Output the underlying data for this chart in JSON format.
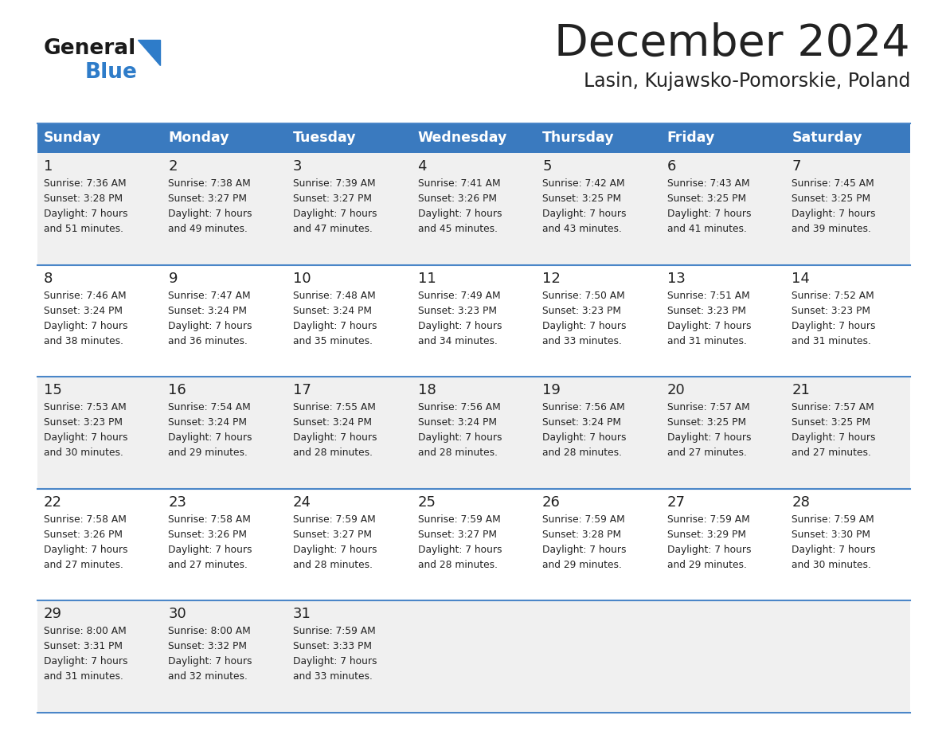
{
  "title": "December 2024",
  "subtitle": "Lasin, Kujawsko-Pomorskie, Poland",
  "header_color": "#3a7abf",
  "header_text_color": "#ffffff",
  "days_of_week": [
    "Sunday",
    "Monday",
    "Tuesday",
    "Wednesday",
    "Thursday",
    "Friday",
    "Saturday"
  ],
  "weeks": [
    [
      {
        "day": 1,
        "sunrise": "7:36 AM",
        "sunset": "3:28 PM",
        "daylight": "7 hours and 51 minutes."
      },
      {
        "day": 2,
        "sunrise": "7:38 AM",
        "sunset": "3:27 PM",
        "daylight": "7 hours and 49 minutes."
      },
      {
        "day": 3,
        "sunrise": "7:39 AM",
        "sunset": "3:27 PM",
        "daylight": "7 hours and 47 minutes."
      },
      {
        "day": 4,
        "sunrise": "7:41 AM",
        "sunset": "3:26 PM",
        "daylight": "7 hours and 45 minutes."
      },
      {
        "day": 5,
        "sunrise": "7:42 AM",
        "sunset": "3:25 PM",
        "daylight": "7 hours and 43 minutes."
      },
      {
        "day": 6,
        "sunrise": "7:43 AM",
        "sunset": "3:25 PM",
        "daylight": "7 hours and 41 minutes."
      },
      {
        "day": 7,
        "sunrise": "7:45 AM",
        "sunset": "3:25 PM",
        "daylight": "7 hours and 39 minutes."
      }
    ],
    [
      {
        "day": 8,
        "sunrise": "7:46 AM",
        "sunset": "3:24 PM",
        "daylight": "7 hours and 38 minutes."
      },
      {
        "day": 9,
        "sunrise": "7:47 AM",
        "sunset": "3:24 PM",
        "daylight": "7 hours and 36 minutes."
      },
      {
        "day": 10,
        "sunrise": "7:48 AM",
        "sunset": "3:24 PM",
        "daylight": "7 hours and 35 minutes."
      },
      {
        "day": 11,
        "sunrise": "7:49 AM",
        "sunset": "3:23 PM",
        "daylight": "7 hours and 34 minutes."
      },
      {
        "day": 12,
        "sunrise": "7:50 AM",
        "sunset": "3:23 PM",
        "daylight": "7 hours and 33 minutes."
      },
      {
        "day": 13,
        "sunrise": "7:51 AM",
        "sunset": "3:23 PM",
        "daylight": "7 hours and 31 minutes."
      },
      {
        "day": 14,
        "sunrise": "7:52 AM",
        "sunset": "3:23 PM",
        "daylight": "7 hours and 31 minutes."
      }
    ],
    [
      {
        "day": 15,
        "sunrise": "7:53 AM",
        "sunset": "3:23 PM",
        "daylight": "7 hours and 30 minutes."
      },
      {
        "day": 16,
        "sunrise": "7:54 AM",
        "sunset": "3:24 PM",
        "daylight": "7 hours and 29 minutes."
      },
      {
        "day": 17,
        "sunrise": "7:55 AM",
        "sunset": "3:24 PM",
        "daylight": "7 hours and 28 minutes."
      },
      {
        "day": 18,
        "sunrise": "7:56 AM",
        "sunset": "3:24 PM",
        "daylight": "7 hours and 28 minutes."
      },
      {
        "day": 19,
        "sunrise": "7:56 AM",
        "sunset": "3:24 PM",
        "daylight": "7 hours and 28 minutes."
      },
      {
        "day": 20,
        "sunrise": "7:57 AM",
        "sunset": "3:25 PM",
        "daylight": "7 hours and 27 minutes."
      },
      {
        "day": 21,
        "sunrise": "7:57 AM",
        "sunset": "3:25 PM",
        "daylight": "7 hours and 27 minutes."
      }
    ],
    [
      {
        "day": 22,
        "sunrise": "7:58 AM",
        "sunset": "3:26 PM",
        "daylight": "7 hours and 27 minutes."
      },
      {
        "day": 23,
        "sunrise": "7:58 AM",
        "sunset": "3:26 PM",
        "daylight": "7 hours and 27 minutes."
      },
      {
        "day": 24,
        "sunrise": "7:59 AM",
        "sunset": "3:27 PM",
        "daylight": "7 hours and 28 minutes."
      },
      {
        "day": 25,
        "sunrise": "7:59 AM",
        "sunset": "3:27 PM",
        "daylight": "7 hours and 28 minutes."
      },
      {
        "day": 26,
        "sunrise": "7:59 AM",
        "sunset": "3:28 PM",
        "daylight": "7 hours and 29 minutes."
      },
      {
        "day": 27,
        "sunrise": "7:59 AM",
        "sunset": "3:29 PM",
        "daylight": "7 hours and 29 minutes."
      },
      {
        "day": 28,
        "sunrise": "7:59 AM",
        "sunset": "3:30 PM",
        "daylight": "7 hours and 30 minutes."
      }
    ],
    [
      {
        "day": 29,
        "sunrise": "8:00 AM",
        "sunset": "3:31 PM",
        "daylight": "7 hours and 31 minutes."
      },
      {
        "day": 30,
        "sunrise": "8:00 AM",
        "sunset": "3:32 PM",
        "daylight": "7 hours and 32 minutes."
      },
      {
        "day": 31,
        "sunrise": "7:59 AM",
        "sunset": "3:33 PM",
        "daylight": "7 hours and 33 minutes."
      },
      null,
      null,
      null,
      null
    ]
  ],
  "bg_color": "#ffffff",
  "cell_bg_even": "#f0f0f0",
  "cell_bg_odd": "#ffffff",
  "row_divider_color": "#4a86c8",
  "text_color": "#222222",
  "day_num_color": "#222222",
  "logo_general_color": "#1a1a1a",
  "logo_blue_color": "#2e7cc9"
}
